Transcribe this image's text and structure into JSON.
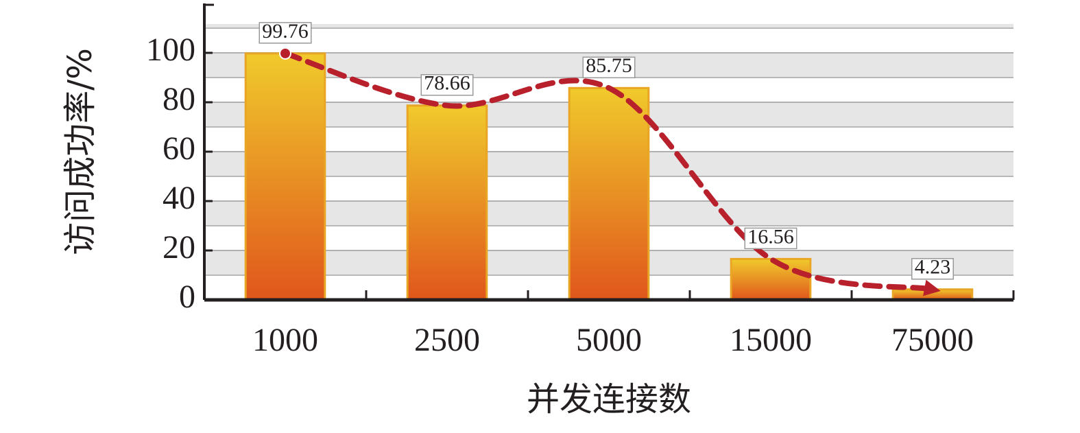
{
  "chart_data": {
    "type": "bar",
    "y_label": "访问成功率/%",
    "x_label": "并发连接数",
    "categories": [
      "1000",
      "2500",
      "5000",
      "15000",
      "75000"
    ],
    "values": [
      99.76,
      78.66,
      85.75,
      16.56,
      4.23
    ],
    "color": "#e8901f",
    "line_overlay": true,
    "line_color": "#b8202c",
    "ylim": [
      0,
      120
    ],
    "yticks": [
      0,
      20,
      40,
      60,
      80,
      100
    ],
    "grid": true
  }
}
